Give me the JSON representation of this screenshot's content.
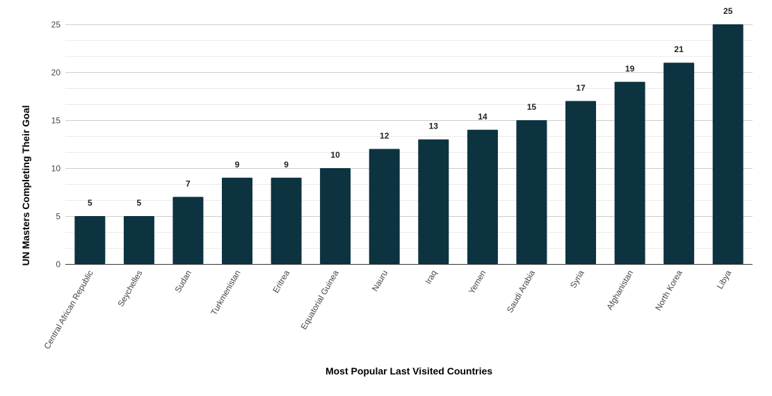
{
  "chart_data": {
    "type": "bar",
    "title": "",
    "xlabel": "Most Popular Last Visited Countries",
    "ylabel": "UN Masters Completing Their Goal",
    "categories": [
      "Central African Republic",
      "Seychelles",
      "Sudan",
      "Turkmenistan",
      "Eritrea",
      "Equatorial Guinea",
      "Nauru",
      "Iraq",
      "Yemen",
      "Saudi Arabia",
      "Syria",
      "Afghanistan",
      "North Korea",
      "Libya"
    ],
    "values": [
      5,
      5,
      7,
      9,
      9,
      10,
      12,
      13,
      14,
      15,
      17,
      19,
      21,
      25
    ],
    "ylim": [
      0,
      25
    ],
    "yticks": [
      0,
      5,
      10,
      15,
      20,
      25
    ],
    "minor_grid": true,
    "grid": true,
    "data_labels": true,
    "legend": "none",
    "bar_color": "#0d3341"
  }
}
